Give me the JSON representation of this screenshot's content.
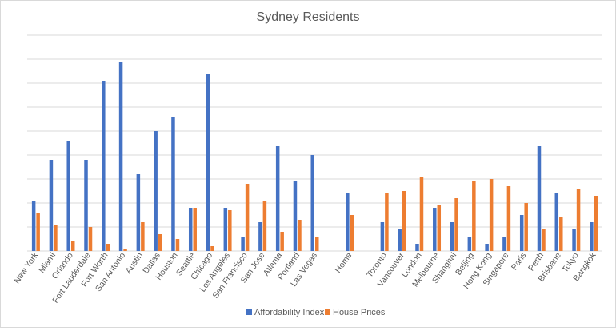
{
  "chart_data": {
    "type": "bar",
    "title": "Sydney Residents",
    "grid": true,
    "legend_position": "bottom",
    "ylim": [
      0,
      9
    ],
    "y_gridline_step": 1,
    "categories": [
      "New York",
      "Miami",
      "Orlando",
      "Fort Lauderdale",
      "Fort Worth",
      "San Antonio",
      "Austin",
      "Dallas",
      "Houston",
      "Seattle",
      "Chicago",
      "Los Angeles",
      "San Francisco",
      "San Jose",
      "Atlanta",
      "Portland",
      "Las Vegas",
      "",
      "Home",
      "",
      "Toronto",
      "Vancouver",
      "London",
      "Melbourne",
      "Shanghai",
      "Beijing",
      "Hong Kong",
      "Singapore",
      "Paris",
      "Perth",
      "Brisbane",
      "Tokyo",
      "Bangkok"
    ],
    "series": [
      {
        "name": "Affordability Index",
        "color": "#4472C4",
        "values": [
          2.1,
          3.8,
          4.6,
          3.8,
          7.1,
          7.9,
          3.2,
          5.0,
          5.6,
          1.8,
          7.4,
          1.8,
          0.6,
          1.2,
          4.4,
          2.9,
          4.0,
          null,
          2.4,
          null,
          1.2,
          0.9,
          0.3,
          1.8,
          1.2,
          0.6,
          0.3,
          0.6,
          1.5,
          4.4,
          2.4,
          0.9,
          1.2
        ]
      },
      {
        "name": "House Prices",
        "color": "#ED7D31",
        "values": [
          1.6,
          1.1,
          0.4,
          1.0,
          0.3,
          0.1,
          1.2,
          0.7,
          0.5,
          1.8,
          0.2,
          1.7,
          2.8,
          2.1,
          0.8,
          1.3,
          0.6,
          null,
          1.5,
          null,
          2.4,
          2.5,
          3.1,
          1.9,
          2.2,
          2.9,
          3.0,
          2.7,
          2.0,
          0.9,
          1.4,
          2.6,
          2.3
        ]
      }
    ]
  }
}
